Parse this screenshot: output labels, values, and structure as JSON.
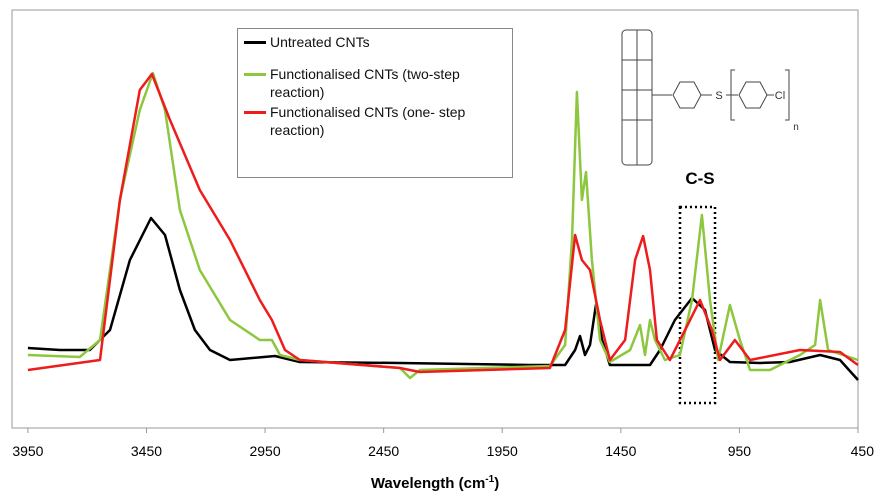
{
  "chart_data": {
    "type": "line",
    "xlabel": {
      "text": "Wavelength (cm",
      "sup": "-1",
      "end": ")"
    },
    "xlim": [
      4017,
      450
    ],
    "ylim": [
      0,
      418
    ],
    "xticks": [
      3950,
      3450,
      2950,
      2450,
      1950,
      1450,
      950,
      450
    ],
    "annotation": "C-S",
    "structure_labels": [
      "S",
      "Cl",
      "n"
    ],
    "series": [
      {
        "name": "Untreated CNTs",
        "color": "#000000",
        "x": [
          3950,
          3815,
          3689,
          3604,
          3520,
          3431,
          3372,
          3309,
          3246,
          3182,
          3098,
          2908,
          2803,
          2381,
          1833,
          1685,
          1643,
          1622,
          1601,
          1580,
          1555,
          1529,
          1496,
          1327,
          1285,
          1222,
          1150,
          1095,
          1053,
          990,
          863,
          737,
          610,
          526,
          450
        ],
        "values": [
          80,
          78,
          78,
          98,
          168,
          210,
          193,
          138,
          98,
          78,
          68,
          72,
          66,
          65,
          63,
          63,
          78,
          92,
          73,
          83,
          123,
          88,
          63,
          63,
          78,
          108,
          130,
          118,
          78,
          66,
          65,
          66,
          73,
          68,
          48
        ]
      },
      {
        "name": "Functionalised CNTs (two-step reaction)",
        "color": "#8dc63f",
        "x": [
          3950,
          3731,
          3646,
          3562,
          3478,
          3423,
          3372,
          3309,
          3225,
          3098,
          2972,
          2921,
          2887,
          2803,
          2381,
          2339,
          2297,
          1749,
          1685,
          1656,
          1635,
          1614,
          1597,
          1572,
          1538,
          1496,
          1411,
          1369,
          1348,
          1327,
          1306,
          1264,
          1201,
          1150,
          1108,
          1074,
          1040,
          990,
          948,
          905,
          821,
          695,
          631,
          610,
          576,
          450
        ],
        "values": [
          73,
          71,
          88,
          228,
          318,
          355,
          318,
          218,
          158,
          108,
          88,
          88,
          73,
          68,
          60,
          50,
          58,
          62,
          83,
          188,
          336,
          228,
          256,
          168,
          88,
          66,
          78,
          103,
          73,
          108,
          88,
          68,
          73,
          128,
          213,
          128,
          68,
          123,
          88,
          58,
          58,
          73,
          83,
          128,
          78,
          68
        ]
      },
      {
        "name": "Functionalised CNTs (one- step reaction)",
        "color": "#ee1c1c",
        "x": [
          3950,
          3646,
          3562,
          3478,
          3427,
          3351,
          3225,
          3098,
          2972,
          2921,
          2866,
          2803,
          2381,
          2297,
          1749,
          1685,
          1643,
          1614,
          1580,
          1538,
          1496,
          1432,
          1390,
          1356,
          1327,
          1298,
          1243,
          1179,
          1116,
          1066,
          1032,
          969,
          905,
          695,
          526,
          450
        ],
        "values": [
          58,
          68,
          228,
          338,
          354,
          308,
          238,
          188,
          128,
          108,
          78,
          68,
          60,
          56,
          60,
          98,
          193,
          168,
          158,
          108,
          68,
          88,
          168,
          192,
          158,
          88,
          68,
          98,
          128,
          98,
          68,
          88,
          68,
          78,
          76,
          63
        ]
      }
    ]
  }
}
